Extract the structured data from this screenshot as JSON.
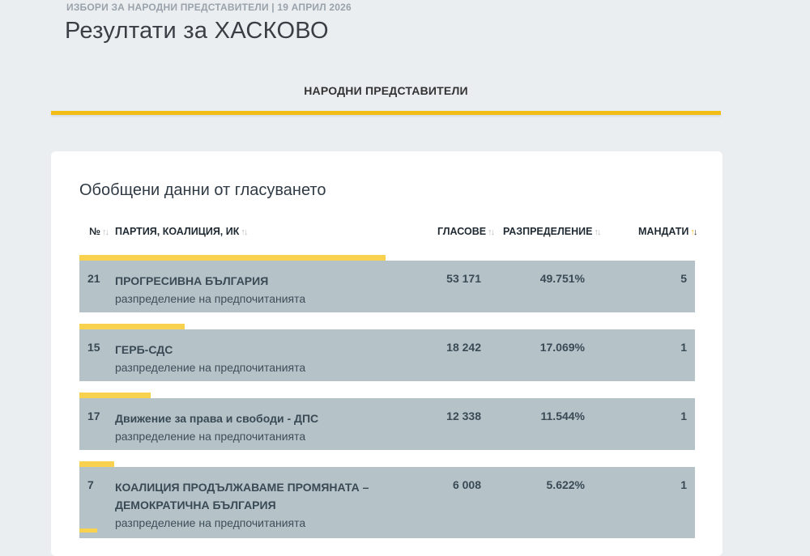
{
  "header": {
    "kicker": "ИЗБОРИ ЗА НАРОДНИ ПРЕДСТАВИТЕЛИ | 19 АПРИЛ 2026",
    "title": "Резултати за ХАСКОВО"
  },
  "tab": {
    "label": "НАРОДНИ ПРЕДСТАВИТЕЛИ",
    "accent": "#f3bd17"
  },
  "card": {
    "title": "Обобщени данни от гласуването",
    "columns": {
      "num": "№",
      "party": "ПАРТИЯ, КОАЛИЦИЯ, ИК",
      "votes": "ГЛАСОВЕ",
      "share": "РАЗПРЕДЕЛЕНИЕ",
      "seats": "МАНДАТИ"
    },
    "rows": [
      {
        "num": "21",
        "name": "ПРОГРЕСИВНА БЪЛГАРИЯ",
        "sub": "разпределение на предпочитанията",
        "votes": "53 171",
        "pct": "49.751%",
        "seats": "5",
        "share": 0.49751
      },
      {
        "num": "15",
        "name": "ГЕРБ-СДС",
        "sub": "разпределение на предпочитанията",
        "votes": "18 242",
        "pct": "17.069%",
        "seats": "1",
        "share": 0.17069
      },
      {
        "num": "17",
        "name": "Движение за права и свободи - ДПС",
        "sub": "разпределение на предпочитанията",
        "votes": "12 338",
        "pct": "11.544%",
        "seats": "1",
        "share": 0.11544
      },
      {
        "num": "7",
        "name": "КОАЛИЦИЯ ПРОДЪЛЖАВАМЕ ПРОМЯНАТА – ДЕМОКРАТИЧНА БЪЛГАРИЯ",
        "sub": "разпределение на предпочитанията",
        "votes": "6 008",
        "pct": "5.622%",
        "seats": "1",
        "share": 0.05622
      }
    ]
  },
  "colors": {
    "row_bg": "#b5c3c9",
    "share_bar": "#f8d24f",
    "background": "#ebeef1"
  }
}
